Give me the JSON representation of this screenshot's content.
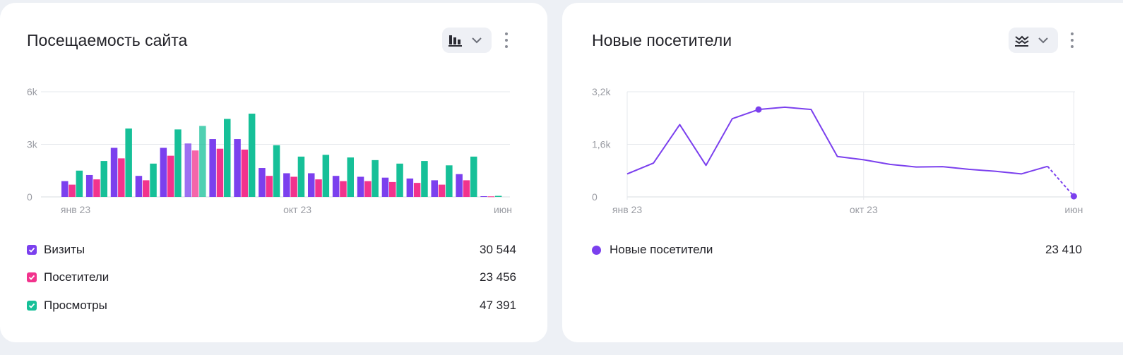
{
  "colors": {
    "visits": "#7b40ee",
    "visitors": "#f2338d",
    "views": "#16c098",
    "new_visitors": "#7b40ee",
    "grid": "#e6e8ec",
    "axis_text": "#9a9ca3"
  },
  "cards": {
    "traffic": {
      "title": "Посещаемость сайта",
      "toggle_icon": "bar-chart-icon",
      "menu_icon": "kebab-menu-icon",
      "legend": [
        {
          "label": "Визиты",
          "value": "30 544",
          "color": "#7b40ee"
        },
        {
          "label": "Посетители",
          "value": "23 456",
          "color": "#f2338d"
        },
        {
          "label": "Просмотры",
          "value": "47 391",
          "color": "#16c098"
        }
      ]
    },
    "new_visitors": {
      "title": "Новые посетители",
      "toggle_icon": "line-chart-icon",
      "menu_icon": "kebab-menu-icon",
      "legend": [
        {
          "label": "Новые посетители",
          "value": "23 410",
          "color": "#7b40ee"
        }
      ]
    }
  },
  "chart_data": [
    {
      "type": "bar",
      "title": "Посещаемость сайта",
      "y_ticks": [
        "0",
        "3k",
        "6k"
      ],
      "x_ticks": [
        {
          "label": "янв 23",
          "index": 0
        },
        {
          "label": "окт 23",
          "index": 9
        },
        {
          "label": "июн",
          "index": 18
        }
      ],
      "ylim": [
        0,
        6000
      ],
      "grid": true,
      "highlighted_index": 5,
      "series": [
        {
          "name": "Визиты",
          "values": [
            900,
            1250,
            2800,
            1200,
            2800,
            3050,
            3300,
            3300,
            1650,
            1350,
            1350,
            1200,
            1150,
            1100,
            1050,
            950,
            1300,
            40
          ]
        },
        {
          "name": "Посетители",
          "values": [
            700,
            1000,
            2200,
            950,
            2350,
            2650,
            2750,
            2700,
            1200,
            1150,
            1000,
            900,
            900,
            850,
            800,
            700,
            950,
            30
          ]
        },
        {
          "name": "Просмотры",
          "values": [
            1500,
            2050,
            3900,
            1900,
            3850,
            4050,
            4450,
            4750,
            2950,
            2300,
            2400,
            2250,
            2100,
            1900,
            2050,
            1800,
            2300,
            60
          ]
        }
      ]
    },
    {
      "type": "line",
      "title": "Новые посетители",
      "y_ticks": [
        "0",
        "1,6k",
        "3,2k"
      ],
      "x_ticks": [
        {
          "label": "янв 23",
          "index": 0
        },
        {
          "label": "окт 23",
          "index": 9
        },
        {
          "label": "июн",
          "index": 17
        }
      ],
      "ylim": [
        0,
        3200
      ],
      "grid": true,
      "marker_index": 5,
      "dashed_last_segment": true,
      "series": [
        {
          "name": "Новые посетители",
          "values": [
            700,
            1030,
            2200,
            960,
            2380,
            2660,
            2730,
            2660,
            1230,
            1130,
            990,
            910,
            920,
            840,
            780,
            700,
            930,
            20
          ]
        }
      ]
    }
  ]
}
